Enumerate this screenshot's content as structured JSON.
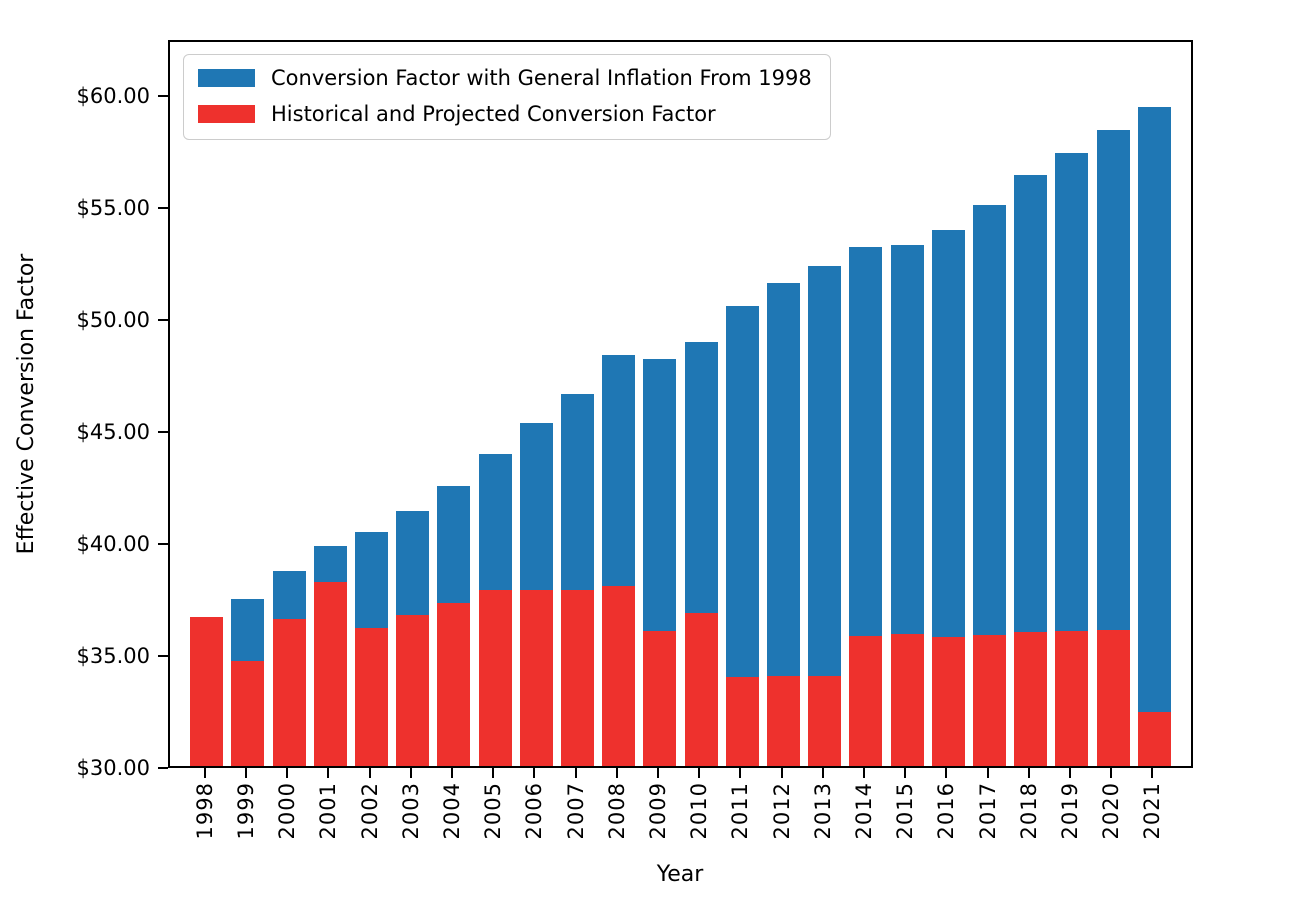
{
  "figure": {
    "background": "#ffffff"
  },
  "chart_data": {
    "type": "bar",
    "bar_mode": "overlay",
    "title": "",
    "xlabel": "Year",
    "ylabel": "Effective Conversion Factor",
    "grid": false,
    "legend_position": "upper left",
    "ylim": [
      30,
      62.5
    ],
    "yticks": [
      {
        "value": 30,
        "label": "$30.00"
      },
      {
        "value": 35,
        "label": "$35.00"
      },
      {
        "value": 40,
        "label": "$40.00"
      },
      {
        "value": 45,
        "label": "$45.00"
      },
      {
        "value": 50,
        "label": "$50.00"
      },
      {
        "value": 55,
        "label": "$55.00"
      },
      {
        "value": 60,
        "label": "$60.00"
      }
    ],
    "categories": [
      "1998",
      "1999",
      "2000",
      "2001",
      "2002",
      "2003",
      "2004",
      "2005",
      "2006",
      "2007",
      "2008",
      "2009",
      "2010",
      "2011",
      "2012",
      "2013",
      "2014",
      "2015",
      "2016",
      "2017",
      "2018",
      "2019",
      "2020",
      "2021"
    ],
    "series": [
      {
        "name": "Conversion Factor with General Inflation From 1998",
        "color": "#1f77b4",
        "values": [
          36.69,
          37.5,
          38.77,
          39.89,
          40.52,
          41.43,
          42.55,
          44.0,
          45.41,
          46.68,
          48.45,
          48.28,
          49.05,
          50.63,
          51.7,
          52.46,
          53.32,
          53.37,
          54.04,
          55.18,
          56.52,
          57.52,
          58.57,
          59.58
        ]
      },
      {
        "name": "Historical and Projected Conversion Factor",
        "color": "#ee312d",
        "values": [
          36.69,
          34.73,
          36.61,
          38.26,
          36.2,
          36.79,
          37.34,
          37.9,
          37.9,
          37.9,
          38.09,
          36.07,
          36.87,
          33.98,
          34.04,
          34.02,
          35.82,
          35.93,
          35.8,
          35.89,
          36.0,
          36.04,
          36.09,
          32.41
        ]
      }
    ]
  }
}
